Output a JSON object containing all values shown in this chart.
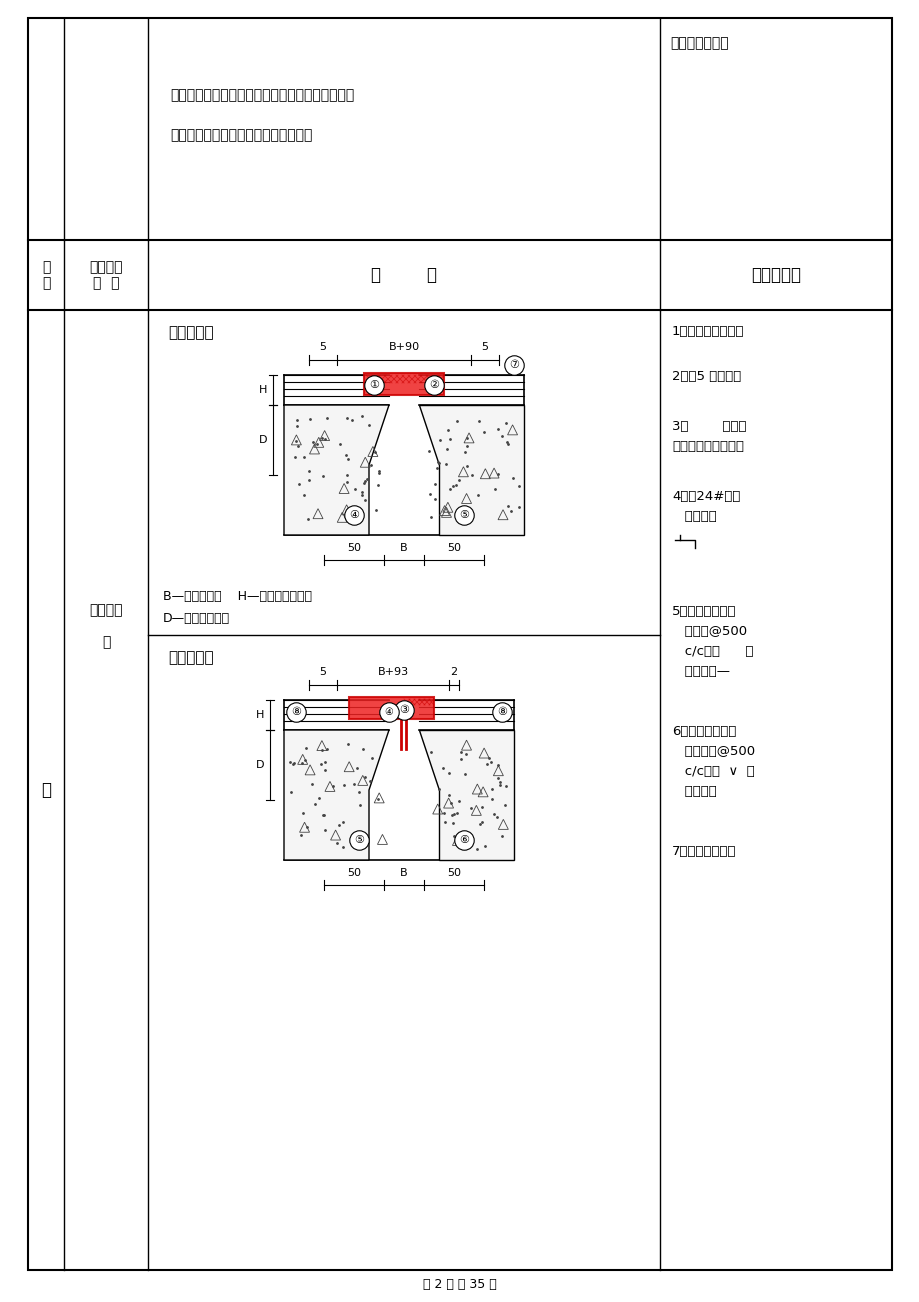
{
  "page_bg": "#ffffff",
  "border_color": "#000000",
  "text_color": "#000000",
  "red_color": "#cc0000",
  "gray_color": "#888888",
  "page_footer": "第 2 页 共 35 页",
  "top_right_text": "才能进行鎏缝。",
  "section3_text_line1": "（三）严禁在已完成的楼地面上拌和砂浆、揉制油",
  "section3_text_line2": "灰、调制油漆等，防止地面污染受损。",
  "header_col1": "项\n次",
  "header_col2": "工序节点\n名  称",
  "header_col3": "图        示",
  "header_col4": "要求与做法",
  "row_label_col1": "四",
  "row_label_col2": "变形沉降\n缝",
  "diagram1_title": "（一）楼面",
  "diagram1_dim1": "5",
  "diagram1_dim2": "B+90",
  "diagram1_dim3": "5",
  "diagram1_bot1": "50",
  "diagram1_bot2": "B",
  "diagram1_bot3": "50",
  "legend_text1": "B—设计缝宽；    H—设计面层厚度；",
  "legend_text2": "D—找平层厚度；",
  "diagram2_title": "（二）墙面",
  "diagram2_dim1": "5",
  "diagram2_dim2": "B+93",
  "diagram2_dim3": "2",
  "diagram2_bot1": "50",
  "diagram2_bot2": "B",
  "diagram2_bot3": "50",
  "requirements": [
    "1、一面层按设计。",
    "2、一5 厚钢板。",
    "3、        形不锈\n钢或铝合金封口板。",
    "",
    "4、一24#镀锌\n   形铁皮。",
    "",
    "5、一塑料胀锚木\n   牙螺丝@500\n   c/c固定      形\n   镀锌铁皮—",
    "6、一塑料胀锚不\n   锈钢螺丝@500\n   c/c固定  ∨  形\n   封口板。",
    "7、一沥青胶泥填"
  ]
}
